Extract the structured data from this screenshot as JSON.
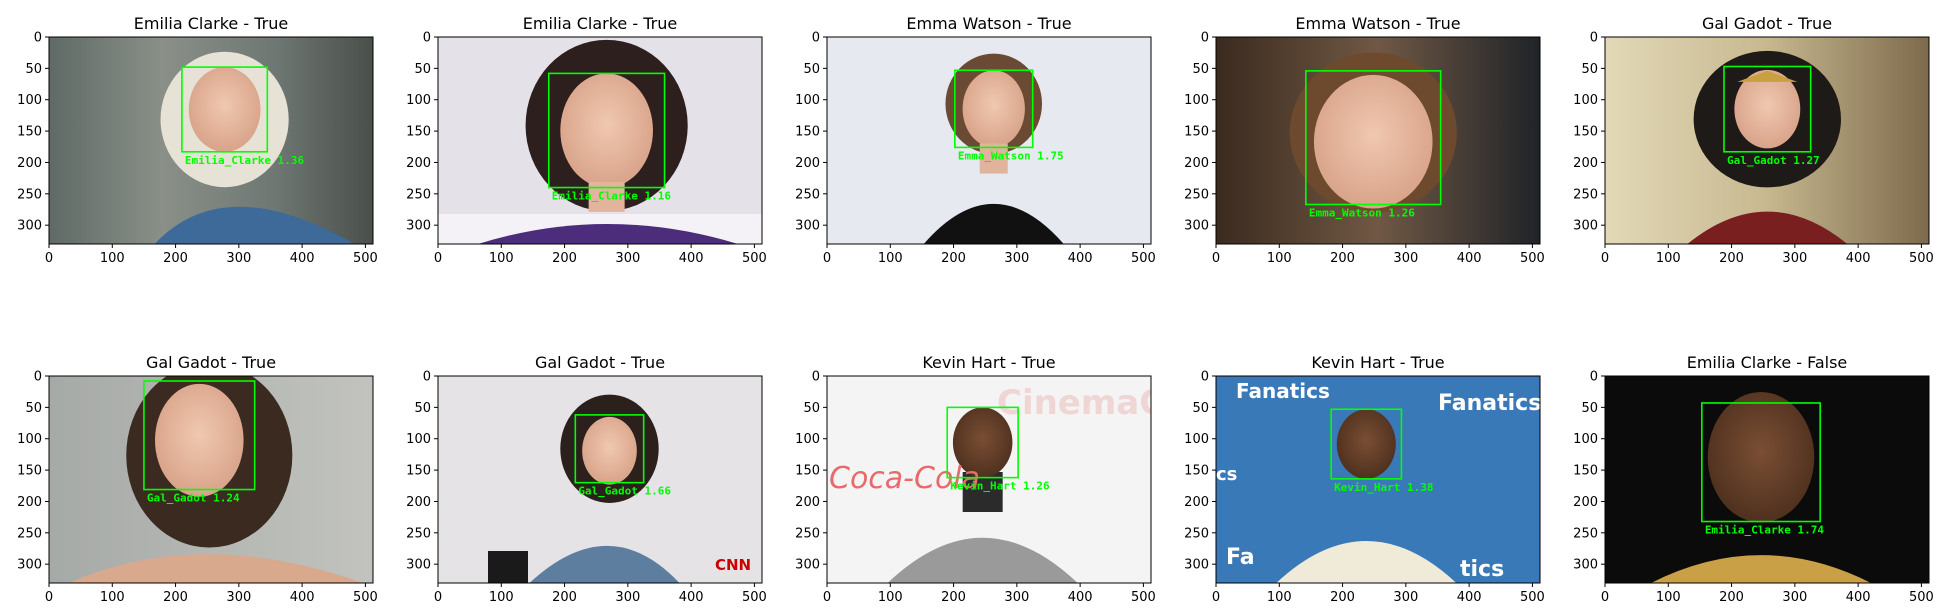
{
  "face_box_color": "#00ff00",
  "x_ticks": [
    "0",
    "100",
    "200",
    "300",
    "400",
    "500"
  ],
  "y_ticks": [
    "0",
    "50",
    "100",
    "150",
    "200",
    "250",
    "300"
  ],
  "panels": [
    {
      "title": "Emilia Clarke - True",
      "detection": "Emilia_Clarke 1.36",
      "box": [
        210,
        48,
        345,
        183
      ],
      "scene": "dragon-queen"
    },
    {
      "title": "Emilia Clarke - True",
      "detection": "Emilia_Clarke 1.16",
      "box": [
        175,
        58,
        358,
        240
      ],
      "scene": "portrait-light"
    },
    {
      "title": "Emma Watson - True",
      "detection": "Emma_Watson 1.75",
      "box": [
        202,
        53,
        325,
        176
      ],
      "scene": "studio-white"
    },
    {
      "title": "Emma Watson - True",
      "detection": "Emma_Watson 1.26",
      "box": [
        142,
        54,
        355,
        267
      ],
      "scene": "blur-dark"
    },
    {
      "title": "Gal Gadot - True",
      "detection": "Gal_Gadot 1.27",
      "box": [
        188,
        47,
        325,
        183
      ],
      "scene": "wonder"
    },
    {
      "title": "Gal Gadot - True",
      "detection": "Gal_Gadot 1.24",
      "box": [
        150,
        8,
        325,
        181
      ],
      "scene": "grey-portrait"
    },
    {
      "title": "Gal Gadot - True",
      "detection": "Gal_Gadot 1.66",
      "box": [
        217,
        62,
        325,
        170
      ],
      "scene": "interview",
      "logo": "CNN"
    },
    {
      "title": "Kevin Hart - True",
      "detection": "Kevin_Hart 1.26",
      "box": [
        190,
        50,
        302,
        162
      ],
      "scene": "cinemacon",
      "backdrop_text": [
        "CinemaCon",
        "Coca-Cola"
      ]
    },
    {
      "title": "Kevin Hart - True",
      "detection": "Kevin_Hart 1.38",
      "box": [
        182,
        53,
        293,
        164
      ],
      "scene": "fanatics",
      "backdrop_text": [
        "Fanatics",
        "Fanatics",
        "Fa",
        "tics",
        "cs"
      ]
    },
    {
      "title": "Emilia Clarke - False",
      "detection": "Emilia_Clarke 1.74",
      "box": [
        153,
        43,
        340,
        232
      ],
      "scene": "black"
    }
  ]
}
